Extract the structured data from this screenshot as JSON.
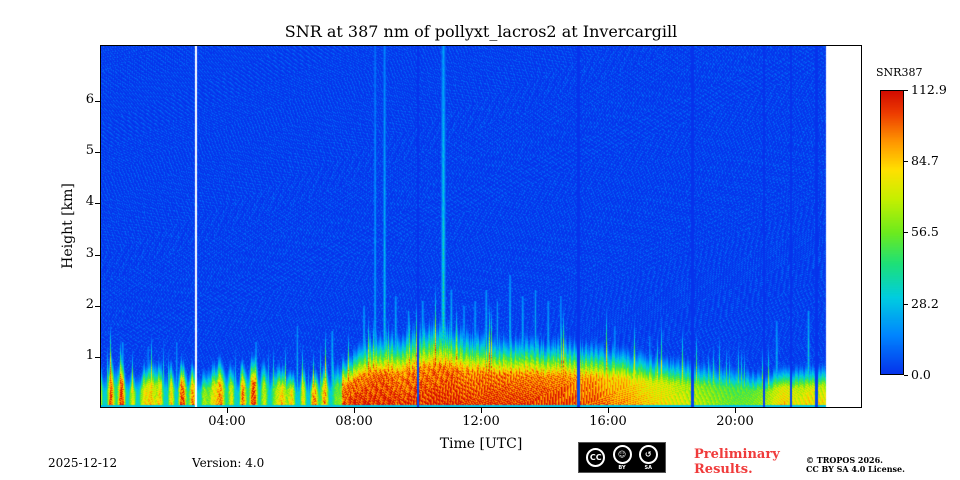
{
  "title": "SNR at 387 nm of pollyxt_lacros2 at Invercargill",
  "xlabel": "Time [UTC]",
  "ylabel": "Height [km]",
  "footer": {
    "date": "2025-12-12",
    "version": "Version: 4.0",
    "preliminary_line1": "Preliminary",
    "preliminary_line2": "Results.",
    "preliminary_color": "#f03b3b",
    "copyright_line1": "© TROPOS 2026.",
    "copyright_line2": "CC BY SA 4.0 License.",
    "cc_badge": {
      "label1": "CC",
      "label2": "BY",
      "label3": "SA"
    }
  },
  "chart_data": {
    "type": "heatmap",
    "title": "SNR at 387 nm of pollyxt_lacros2 at Invercargill",
    "xlabel": "Time [UTC]",
    "ylabel": "Height [km]",
    "x_range_hours": [
      0,
      24
    ],
    "data_end_hour": 22.85,
    "x_ticks": [
      {
        "hour": 4,
        "label": "04:00"
      },
      {
        "hour": 8,
        "label": "08:00"
      },
      {
        "hour": 12,
        "label": "12:00"
      },
      {
        "hour": 16,
        "label": "16:00"
      },
      {
        "hour": 20,
        "label": "20:00"
      }
    ],
    "y_range_km": [
      0,
      7.1
    ],
    "y_ticks": [
      {
        "km": 1,
        "label": "1"
      },
      {
        "km": 2,
        "label": "2"
      },
      {
        "km": 3,
        "label": "3"
      },
      {
        "km": 4,
        "label": "4"
      },
      {
        "km": 5,
        "label": "5"
      },
      {
        "km": 6,
        "label": "6"
      }
    ],
    "colorbar": {
      "label": "SNR387",
      "vmin": 0,
      "vmax": 112.9,
      "colormap": "jet",
      "ticks": [
        {
          "value": 112.9,
          "label": "112.9"
        },
        {
          "value": 84.7,
          "label": "84.7"
        },
        {
          "value": 56.5,
          "label": "56.5"
        },
        {
          "value": 28.2,
          "label": "28.2"
        },
        {
          "value": 0.0,
          "label": "0.0"
        }
      ]
    },
    "gap_line_hour": 3.0,
    "red_core_fraction": 0.45,
    "patchy_until_hour": 7.6,
    "overlap_strip": {
      "height_km": 0.05,
      "snr": 28
    },
    "boundary_layer": [
      [
        0.0,
        0.95,
        105
      ],
      [
        0.5,
        1.0,
        100
      ],
      [
        1.0,
        0.85,
        108
      ],
      [
        1.5,
        0.95,
        102
      ],
      [
        2.0,
        1.0,
        106
      ],
      [
        2.5,
        0.9,
        100
      ],
      [
        3.0,
        0.85,
        104
      ],
      [
        3.5,
        0.95,
        106
      ],
      [
        4.0,
        1.0,
        103
      ],
      [
        4.5,
        0.9,
        100
      ],
      [
        5.0,
        1.1,
        106
      ],
      [
        5.5,
        0.95,
        100
      ],
      [
        6.0,
        0.75,
        95
      ],
      [
        6.4,
        0.9,
        100
      ],
      [
        6.7,
        0.65,
        90
      ],
      [
        7.0,
        0.85,
        100
      ],
      [
        7.4,
        1.1,
        106
      ],
      [
        7.8,
        1.05,
        108
      ],
      [
        8.0,
        1.2,
        112
      ],
      [
        8.5,
        1.5,
        112
      ],
      [
        9.0,
        1.6,
        112
      ],
      [
        9.5,
        1.55,
        110
      ],
      [
        10.0,
        1.7,
        110
      ],
      [
        10.5,
        1.8,
        112
      ],
      [
        11.0,
        1.75,
        112
      ],
      [
        11.5,
        1.6,
        110
      ],
      [
        12.0,
        1.55,
        110
      ],
      [
        12.5,
        1.5,
        112
      ],
      [
        13.0,
        1.5,
        110
      ],
      [
        13.5,
        1.45,
        110
      ],
      [
        14.0,
        1.4,
        110
      ],
      [
        14.5,
        1.45,
        108
      ],
      [
        15.0,
        1.4,
        106
      ],
      [
        15.5,
        1.35,
        104
      ],
      [
        16.0,
        1.3,
        100
      ],
      [
        16.5,
        1.25,
        96
      ],
      [
        17.0,
        1.2,
        90
      ],
      [
        17.5,
        1.1,
        85
      ],
      [
        18.0,
        1.05,
        80
      ],
      [
        18.5,
        1.0,
        75
      ],
      [
        19.0,
        0.95,
        68
      ],
      [
        19.5,
        0.9,
        62
      ],
      [
        20.0,
        0.85,
        58
      ],
      [
        20.5,
        0.8,
        60
      ],
      [
        21.0,
        0.75,
        70
      ],
      [
        21.5,
        0.9,
        88
      ],
      [
        22.0,
        0.85,
        78
      ],
      [
        22.4,
        0.9,
        85
      ],
      [
        22.85,
        0.9,
        82
      ]
    ],
    "plumes": [
      [
        0.7,
        1.3,
        0.05,
        40
      ],
      [
        1.5,
        1.2,
        0.04,
        35
      ],
      [
        2.4,
        1.3,
        0.04,
        35
      ],
      [
        4.9,
        1.3,
        0.05,
        40
      ],
      [
        6.2,
        1.6,
        0.04,
        40
      ],
      [
        7.3,
        1.5,
        0.05,
        45
      ],
      [
        8.3,
        2.0,
        0.05,
        45
      ],
      [
        8.65,
        7.1,
        0.05,
        30
      ],
      [
        8.95,
        7.1,
        0.06,
        35
      ],
      [
        9.3,
        2.2,
        0.05,
        45
      ],
      [
        9.7,
        1.9,
        0.04,
        40
      ],
      [
        10.15,
        2.1,
        0.05,
        45
      ],
      [
        10.8,
        7.1,
        0.09,
        45
      ],
      [
        11.05,
        2.3,
        0.05,
        45
      ],
      [
        11.45,
        2.0,
        0.05,
        42
      ],
      [
        11.8,
        2.1,
        0.05,
        42
      ],
      [
        12.15,
        2.3,
        0.05,
        45
      ],
      [
        12.5,
        2.1,
        0.04,
        40
      ],
      [
        12.9,
        2.6,
        0.05,
        45
      ],
      [
        13.3,
        2.2,
        0.05,
        42
      ],
      [
        13.7,
        2.3,
        0.04,
        40
      ],
      [
        14.1,
        2.1,
        0.05,
        42
      ],
      [
        14.5,
        2.2,
        0.04,
        40
      ],
      [
        16.2,
        1.6,
        0.05,
        38
      ],
      [
        17.3,
        1.4,
        0.04,
        35
      ],
      [
        21.3,
        1.7,
        0.05,
        40
      ],
      [
        22.3,
        1.9,
        0.05,
        42
      ]
    ],
    "signal_gaps": [
      [
        10.0,
        0.04
      ],
      [
        15.05,
        0.05
      ],
      [
        18.65,
        0.04
      ],
      [
        20.9,
        0.03
      ],
      [
        21.75,
        0.04
      ],
      [
        22.55,
        0.04
      ]
    ]
  }
}
